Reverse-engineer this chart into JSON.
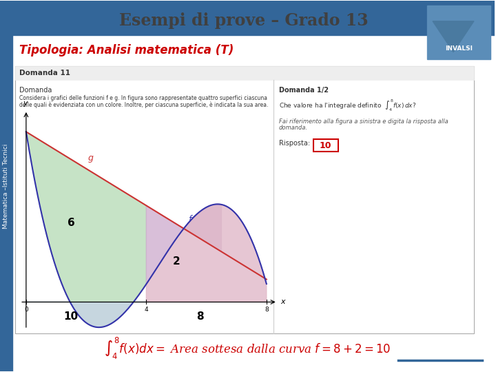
{
  "title": "Esempi di prove – Grado 13",
  "subtitle": "Tipologia: Analisi matematica (T)",
  "slide_bg": "#ffffff",
  "title_color": "#404040",
  "subtitle_color": "#cc0000",
  "left_bar_color": "#336699",
  "top_bar_color": "#336699",
  "side_text": "Matematica –Istituti Tecnici",
  "invalsi_box_color": "#5b8db8",
  "box_title": "Domanda 11",
  "domanda_text": "Domanda",
  "domanda_body1": "Considera i grafici delle funzioni f e g. In figura sono rappresentate quattro superfici ciascuna",
  "domanda_body2": "delle quali è evidenziata con un colore. Inoltre, per ciascuna superficie, è indicata la sua area.",
  "domanda12_title": "Domanda 1/2",
  "risposta_text": "Risposta:",
  "risposta_value": "10",
  "ref_text1": "Fai riferimento alla figura a sinistra e digita la risposta alla",
  "ref_text2": "domanda.",
  "curve_color_blue": "#3333aa",
  "curve_color_red": "#cc3333",
  "area_green": "#b8ddb8",
  "area_blue_light": "#b8ccd8",
  "area_pink": "#e0b8c8",
  "area_mauve": "#d0b0d0"
}
